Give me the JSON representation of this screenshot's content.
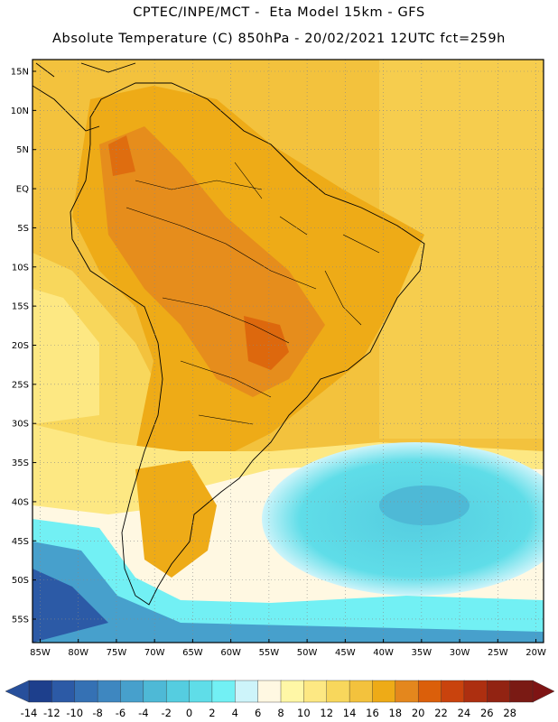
{
  "header": {
    "title_line1": "CPTEC/INPE/MCT -  Eta Model 15km - GFS",
    "title_line2": "Absolute Temperature (C) 850hPa - 20/02/2021 12UTC fct=259h"
  },
  "map": {
    "lat_labels": [
      "15N",
      "10N",
      "5N",
      "EQ",
      "5S",
      "10S",
      "15S",
      "20S",
      "25S",
      "30S",
      "35S",
      "40S",
      "45S",
      "50S",
      "55S"
    ],
    "lon_labels": [
      "85W",
      "80W",
      "75W",
      "70W",
      "65W",
      "60W",
      "55W",
      "50W",
      "45W",
      "40W",
      "35W",
      "30W",
      "25W",
      "20W"
    ],
    "lat_values": [
      15,
      10,
      5,
      0,
      -5,
      -10,
      -15,
      -20,
      -25,
      -30,
      -35,
      -40,
      -45,
      -50,
      -55
    ],
    "lon_values": [
      -85,
      -80,
      -75,
      -70,
      -65,
      -60,
      -55,
      -50,
      -45,
      -40,
      -35,
      -30,
      -25,
      -20
    ],
    "extent": {
      "lon_min": -86,
      "lon_max": -19,
      "lat_min": -58,
      "lat_max": 16.5
    },
    "gridlines": true,
    "temperature_unit": "C"
  },
  "colorbar": {
    "labels": [
      "-14",
      "-12",
      "-10",
      "-8",
      "-6",
      "-4",
      "-2",
      "0",
      "2",
      "4",
      "6",
      "8",
      "10",
      "12",
      "14",
      "16",
      "18",
      "20",
      "22",
      "24",
      "26",
      "28"
    ],
    "colors": [
      "#1d3f8c",
      "#2c5aa6",
      "#3571b4",
      "#3e87c0",
      "#47a0cc",
      "#4eb9d6",
      "#55cde0",
      "#5fdde8",
      "#72f0f4",
      "#cdf4fa",
      "#fff8e2",
      "#fff7a6",
      "#fde883",
      "#f8d75c",
      "#f3c23d",
      "#eeab17",
      "#e4871d",
      "#db5f0a",
      "#c9430d",
      "#ad2f10",
      "#922312",
      "#7a1a14"
    ],
    "under_color": "#274f9b",
    "over_color": "#7e1414"
  }
}
